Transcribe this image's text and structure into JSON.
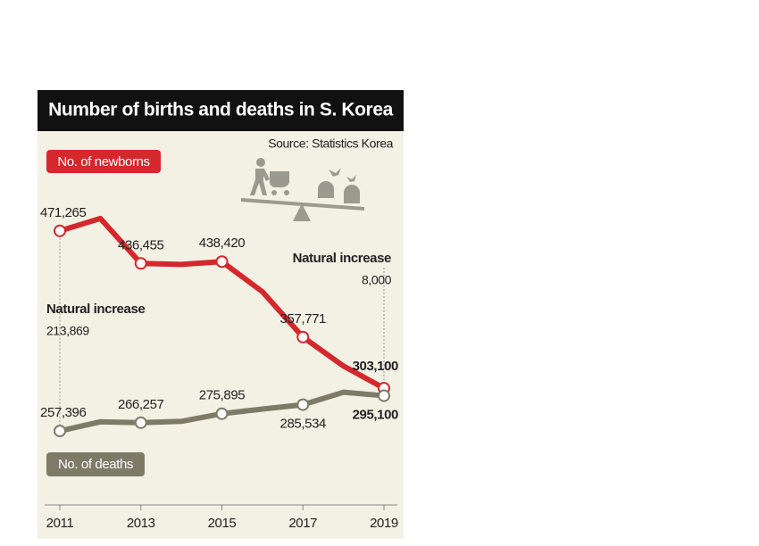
{
  "chart_data": {
    "type": "line",
    "title": "Number of births and deaths in S. Korea",
    "source": "Source: Statistics Korea",
    "x": [
      2011,
      2012,
      2013,
      2014,
      2015,
      2016,
      2017,
      2018,
      2019
    ],
    "xlim": [
      2011,
      2019
    ],
    "xticks": [
      2011,
      2013,
      2015,
      2017,
      2019
    ],
    "ylim": [
      165000,
      575000
    ],
    "series": [
      {
        "name": "No. of newborns",
        "color": "#d4282d",
        "values": [
          471265,
          484550,
          436455,
          435435,
          438420,
          406243,
          357771,
          326822,
          303100
        ],
        "value_labels": [
          "471,265",
          null,
          "436,455",
          null,
          "438,420",
          null,
          "357,771",
          null,
          "303,100"
        ]
      },
      {
        "name": "No. of deaths",
        "color": "#7d7b68",
        "values": [
          257396,
          267221,
          266257,
          267692,
          275895,
          280827,
          285534,
          298820,
          295100
        ],
        "value_labels": [
          "257,396",
          null,
          "266,257",
          null,
          "275,895",
          null,
          "285,534",
          null,
          "295,100"
        ]
      }
    ],
    "annotations": [
      {
        "text": "Natural increase",
        "value": 213869,
        "value_label": "213,869"
      },
      {
        "text": "Natural increase",
        "value": 8000,
        "value_label": "8,000"
      }
    ]
  }
}
